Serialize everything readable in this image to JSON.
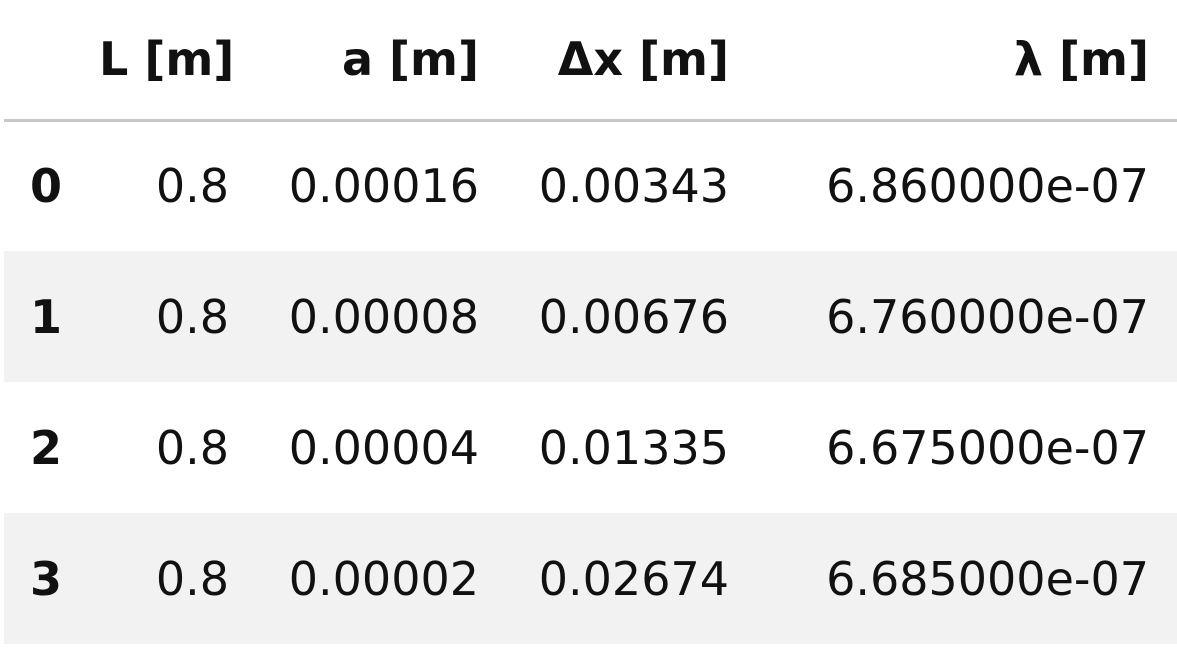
{
  "table": {
    "index_header": "",
    "columns": [
      "L [m]",
      "a [m]",
      "Δx [m]",
      "λ [m]"
    ],
    "rows": [
      {
        "index": "0",
        "cells": [
          "0.8",
          "0.00016",
          "0.00343",
          "6.860000e-07"
        ]
      },
      {
        "index": "1",
        "cells": [
          "0.8",
          "0.00008",
          "0.00676",
          "6.760000e-07"
        ]
      },
      {
        "index": "2",
        "cells": [
          "0.8",
          "0.00004",
          "0.01335",
          "6.675000e-07"
        ]
      },
      {
        "index": "3",
        "cells": [
          "0.8",
          "0.00002",
          "0.02674",
          "6.685000e-07"
        ]
      }
    ]
  }
}
